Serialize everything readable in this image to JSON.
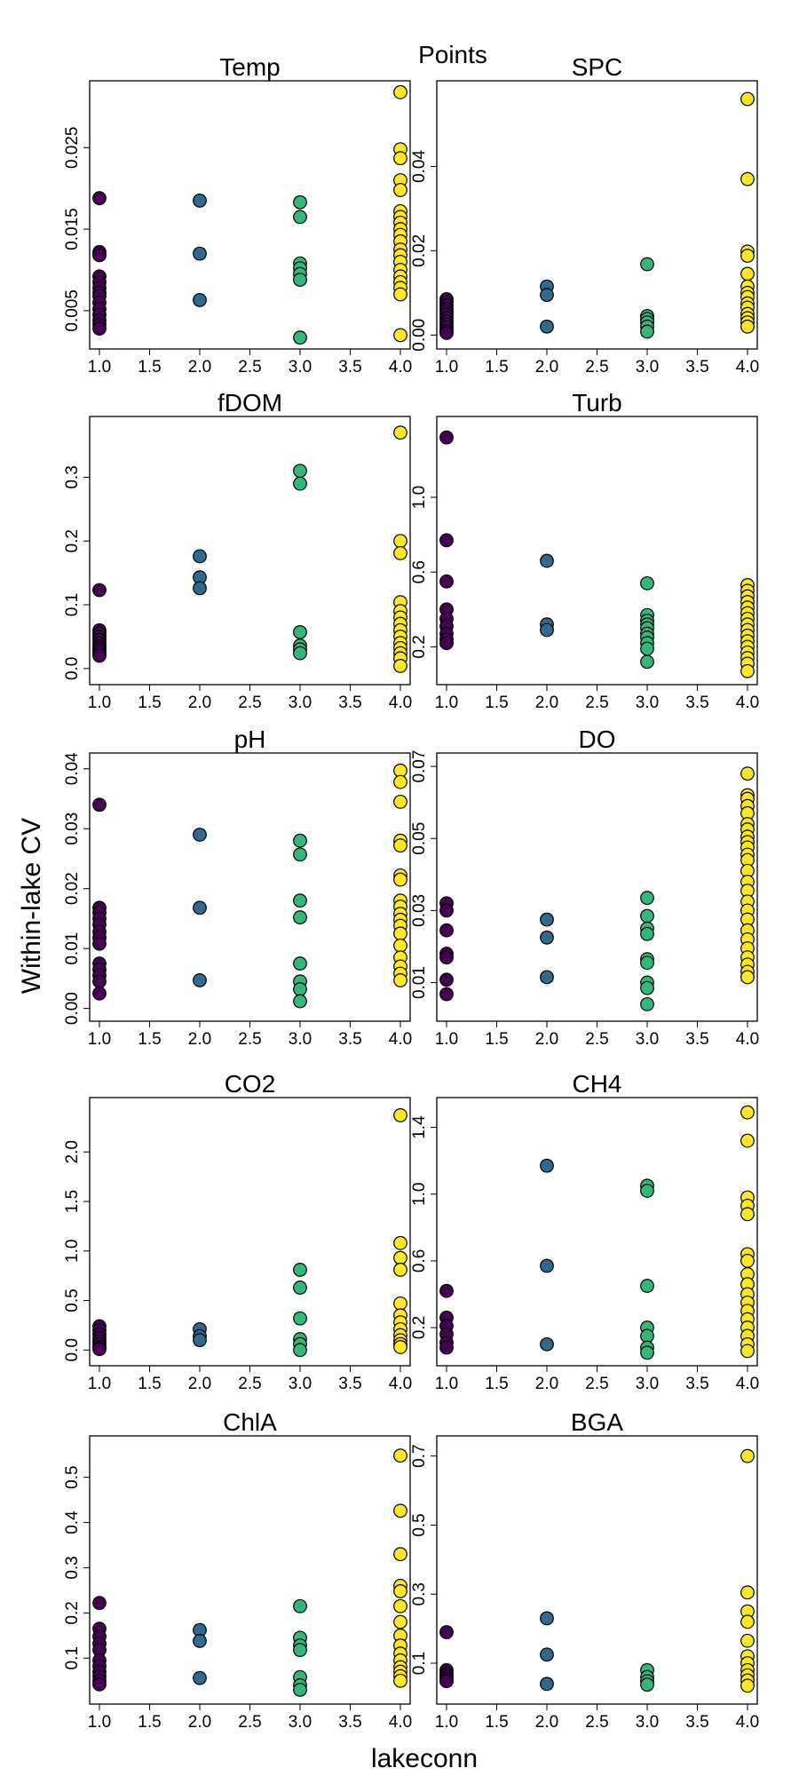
{
  "title": "Points",
  "xlabel": "lakeconn",
  "ylabel": "Within-lake CV",
  "colors": {
    "1": "#440154",
    "2": "#31688e",
    "3": "#35b779",
    "4": "#fde725",
    "stroke": "#000000"
  },
  "chart_data": [
    {
      "type": "scatter",
      "title": "Temp",
      "xlim": [
        1,
        4
      ],
      "ylim": [
        0.0015,
        0.032
      ],
      "x_ticks": [
        "1.0",
        "1.5",
        "2.0",
        "2.5",
        "3.0",
        "3.5",
        "4.0"
      ],
      "y_ticks": [
        "0.005",
        "0.015",
        "0.025"
      ],
      "series": [
        {
          "x": 1,
          "y": [
            0.0188,
            0.0122,
            0.0118,
            0.0092,
            0.0085,
            0.0078,
            0.0072,
            0.0068,
            0.006,
            0.0052,
            0.0045,
            0.0038,
            0.0033,
            0.0028
          ]
        },
        {
          "x": 2,
          "y": [
            0.0185,
            0.012,
            0.0063
          ]
        },
        {
          "x": 3,
          "y": [
            0.0183,
            0.0165,
            0.0108,
            0.0102,
            0.0095,
            0.0088,
            0.0017
          ]
        },
        {
          "x": 4,
          "y": [
            0.0318,
            0.0248,
            0.0237,
            0.021,
            0.0198,
            0.0172,
            0.0165,
            0.0158,
            0.015,
            0.0143,
            0.0135,
            0.0125,
            0.0118,
            0.011,
            0.01,
            0.0092,
            0.0085,
            0.0078,
            0.007,
            0.002
          ]
        }
      ]
    },
    {
      "type": "scatter",
      "title": "SPC",
      "xlim": [
        1,
        4
      ],
      "ylim": [
        -0.001,
        0.058
      ],
      "x_ticks": [
        "1.0",
        "1.5",
        "2.0",
        "2.5",
        "3.0",
        "3.5",
        "4.0"
      ],
      "y_ticks": [
        "0.00",
        "0.02",
        "0.04"
      ],
      "series": [
        {
          "x": 1,
          "y": [
            0.0085,
            0.0078,
            0.007,
            0.0062,
            0.0055,
            0.0048,
            0.004,
            0.0032,
            0.0025,
            0.0018,
            0.001,
            0.0005
          ]
        },
        {
          "x": 2,
          "y": [
            0.0115,
            0.0095,
            0.002
          ]
        },
        {
          "x": 3,
          "y": [
            0.0168,
            0.0045,
            0.0038,
            0.003,
            0.002,
            0.0008
          ]
        },
        {
          "x": 4,
          "y": [
            0.056,
            0.037,
            0.0198,
            0.0188,
            0.0145,
            0.0115,
            0.01,
            0.009,
            0.0075,
            0.0065,
            0.005,
            0.004,
            0.003,
            0.002
          ]
        }
      ]
    },
    {
      "type": "scatter",
      "title": "fDOM",
      "xlim": [
        1,
        4
      ],
      "ylim": [
        -0.01,
        0.38
      ],
      "x_ticks": [
        "1.0",
        "1.5",
        "2.0",
        "2.5",
        "3.0",
        "3.5",
        "4.0"
      ],
      "y_ticks": [
        "0.0",
        "0.1",
        "0.2",
        "0.3"
      ],
      "series": [
        {
          "x": 1,
          "y": [
            0.123,
            0.06,
            0.055,
            0.05,
            0.045,
            0.04,
            0.036,
            0.032,
            0.028,
            0.024,
            0.02
          ]
        },
        {
          "x": 2,
          "y": [
            0.176,
            0.143,
            0.126
          ]
        },
        {
          "x": 3,
          "y": [
            0.31,
            0.29,
            0.057,
            0.036,
            0.03,
            0.024
          ]
        },
        {
          "x": 4,
          "y": [
            0.37,
            0.2,
            0.181,
            0.104,
            0.09,
            0.08,
            0.07,
            0.06,
            0.05,
            0.04,
            0.032,
            0.024,
            0.016,
            0.004
          ]
        }
      ]
    },
    {
      "type": "scatter",
      "title": "Turb",
      "xlim": [
        1,
        4
      ],
      "ylim": [
        0.05,
        1.38
      ],
      "x_ticks": [
        "1.0",
        "1.5",
        "2.0",
        "2.5",
        "3.0",
        "3.5",
        "4.0"
      ],
      "y_ticks": [
        "0.2",
        "0.6",
        "1.0"
      ],
      "series": [
        {
          "x": 1,
          "y": [
            1.32,
            0.77,
            0.55,
            0.4,
            0.35,
            0.31,
            0.27,
            0.24,
            0.22
          ]
        },
        {
          "x": 2,
          "y": [
            0.66,
            0.32,
            0.29
          ]
        },
        {
          "x": 3,
          "y": [
            0.54,
            0.37,
            0.34,
            0.32,
            0.3,
            0.27,
            0.25,
            0.22,
            0.19,
            0.12
          ]
        },
        {
          "x": 4,
          "y": [
            0.53,
            0.5,
            0.47,
            0.44,
            0.41,
            0.38,
            0.35,
            0.32,
            0.29,
            0.26,
            0.23,
            0.2,
            0.17,
            0.14,
            0.11,
            0.07
          ]
        }
      ]
    },
    {
      "type": "scatter",
      "title": "pH",
      "xlim": [
        1,
        4
      ],
      "ylim": [
        -0.0005,
        0.041
      ],
      "x_ticks": [
        "1.0",
        "1.5",
        "2.0",
        "2.5",
        "3.0",
        "3.5",
        "4.0"
      ],
      "y_ticks": [
        "0.00",
        "0.01",
        "0.02",
        "0.03",
        "0.04"
      ],
      "series": [
        {
          "x": 1,
          "y": [
            0.034,
            0.0168,
            0.016,
            0.015,
            0.014,
            0.0128,
            0.0118,
            0.0108,
            0.0075,
            0.0065,
            0.0055,
            0.0045,
            0.0025
          ]
        },
        {
          "x": 2,
          "y": [
            0.029,
            0.0168,
            0.0047
          ]
        },
        {
          "x": 3,
          "y": [
            0.028,
            0.0257,
            0.018,
            0.0152,
            0.0075,
            0.0045,
            0.0032,
            0.0012
          ]
        },
        {
          "x": 4,
          "y": [
            0.0397,
            0.0378,
            0.0345,
            0.028,
            0.0272,
            0.0222,
            0.0215,
            0.018,
            0.017,
            0.0158,
            0.0148,
            0.0138,
            0.0125,
            0.0105,
            0.0085,
            0.007,
            0.0058,
            0.0047
          ]
        }
      ]
    },
    {
      "type": "scatter",
      "title": "DO",
      "xlim": [
        1,
        4
      ],
      "ylim": [
        0.002,
        0.071
      ],
      "x_ticks": [
        "1.0",
        "1.5",
        "2.0",
        "2.5",
        "3.0",
        "3.5",
        "4.0"
      ],
      "y_ticks": [
        "0.01",
        "0.03",
        "0.05",
        "0.07"
      ],
      "series": [
        {
          "x": 1,
          "y": [
            0.032,
            0.03,
            0.0245,
            0.018,
            0.017,
            0.0108,
            0.0068
          ]
        },
        {
          "x": 2,
          "y": [
            0.0275,
            0.0225,
            0.0115
          ]
        },
        {
          "x": 3,
          "y": [
            0.0335,
            0.0285,
            0.025,
            0.0235,
            0.0165,
            0.0155,
            0.01,
            0.0085,
            0.004
          ]
        },
        {
          "x": 4,
          "y": [
            0.068,
            0.062,
            0.061,
            0.059,
            0.057,
            0.054,
            0.0525,
            0.0505,
            0.049,
            0.0475,
            0.0455,
            0.044,
            0.041,
            0.038,
            0.0355,
            0.0325,
            0.03,
            0.0275,
            0.0245,
            0.022,
            0.0195,
            0.017,
            0.015,
            0.013,
            0.0115
          ]
        }
      ]
    },
    {
      "type": "scatter",
      "title": "CO2",
      "xlim": [
        1,
        4
      ],
      "ylim": [
        -0.06,
        2.45
      ],
      "x_ticks": [
        "1.0",
        "1.5",
        "2.0",
        "2.5",
        "3.0",
        "3.5",
        "4.0"
      ],
      "y_ticks": [
        "0.0",
        "0.5",
        "1.0",
        "1.5",
        "2.0"
      ],
      "series": [
        {
          "x": 1,
          "y": [
            0.24,
            0.2,
            0.16,
            0.12,
            0.09,
            0.06,
            0.03,
            0.01
          ]
        },
        {
          "x": 2,
          "y": [
            0.21,
            0.14,
            0.1
          ]
        },
        {
          "x": 3,
          "y": [
            0.81,
            0.63,
            0.32,
            0.11,
            0.06,
            0.0
          ]
        },
        {
          "x": 4,
          "y": [
            2.37,
            1.08,
            0.93,
            0.81,
            0.47,
            0.35,
            0.28,
            0.21,
            0.15,
            0.1,
            0.06,
            0.03
          ]
        }
      ]
    },
    {
      "type": "scatter",
      "title": "CH4",
      "xlim": [
        1,
        4
      ],
      "ylim": [
        0.03,
        1.52
      ],
      "x_ticks": [
        "1.0",
        "1.5",
        "2.0",
        "2.5",
        "3.0",
        "3.5",
        "4.0"
      ],
      "y_ticks": [
        "0.2",
        "0.6",
        "1.0",
        "1.4"
      ],
      "series": [
        {
          "x": 1,
          "y": [
            0.42,
            0.26,
            0.21,
            0.16,
            0.11,
            0.08
          ]
        },
        {
          "x": 2,
          "y": [
            1.17,
            0.57,
            0.1
          ]
        },
        {
          "x": 3,
          "y": [
            1.05,
            1.02,
            0.45,
            0.2,
            0.15,
            0.08,
            0.05
          ]
        },
        {
          "x": 4,
          "y": [
            1.49,
            1.32,
            0.98,
            0.93,
            0.88,
            0.64,
            0.6,
            0.52,
            0.46,
            0.4,
            0.35,
            0.3,
            0.25,
            0.2,
            0.15,
            0.1,
            0.06
          ]
        }
      ]
    },
    {
      "type": "scatter",
      "title": "ChlA",
      "xlim": [
        1,
        4
      ],
      "ylim": [
        0.02,
        0.57
      ],
      "x_ticks": [
        "1.0",
        "1.5",
        "2.0",
        "2.5",
        "3.0",
        "3.5",
        "4.0"
      ],
      "y_ticks": [
        "0.1",
        "0.2",
        "0.3",
        "0.4",
        "0.5"
      ],
      "series": [
        {
          "x": 1,
          "y": [
            0.222,
            0.165,
            0.148,
            0.132,
            0.118,
            0.095,
            0.082,
            0.07,
            0.06,
            0.05,
            0.042
          ]
        },
        {
          "x": 2,
          "y": [
            0.162,
            0.138,
            0.056
          ]
        },
        {
          "x": 3,
          "y": [
            0.215,
            0.145,
            0.128,
            0.118,
            0.058,
            0.04,
            0.03
          ]
        },
        {
          "x": 4,
          "y": [
            0.548,
            0.426,
            0.33,
            0.26,
            0.248,
            0.215,
            0.18,
            0.15,
            0.128,
            0.11,
            0.095,
            0.08,
            0.07,
            0.06,
            0.05
          ]
        }
      ]
    },
    {
      "type": "scatter",
      "title": "BGA",
      "xlim": [
        1,
        4
      ],
      "ylim": [
        0.01,
        0.73
      ],
      "x_ticks": [
        "1.0",
        "1.5",
        "2.0",
        "2.5",
        "3.0",
        "3.5",
        "4.0"
      ],
      "y_ticks": [
        "0.1",
        "0.3",
        "0.5",
        "0.7"
      ],
      "series": [
        {
          "x": 1,
          "y": [
            0.19,
            0.08,
            0.07,
            0.062,
            0.055,
            0.048
          ]
        },
        {
          "x": 2,
          "y": [
            0.23,
            0.125,
            0.04
          ]
        },
        {
          "x": 3,
          "y": [
            0.08,
            0.06,
            0.048,
            0.038
          ]
        },
        {
          "x": 4,
          "y": [
            0.7,
            0.305,
            0.25,
            0.22,
            0.165,
            0.12,
            0.1,
            0.08,
            0.065,
            0.05,
            0.035
          ]
        }
      ]
    }
  ]
}
